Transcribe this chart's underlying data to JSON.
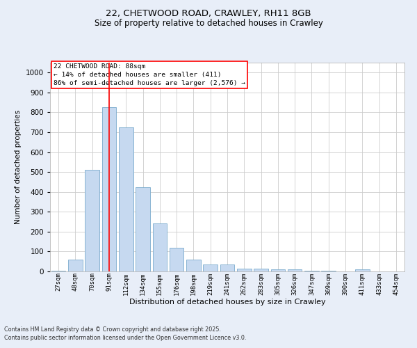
{
  "title1": "22, CHETWOOD ROAD, CRAWLEY, RH11 8GB",
  "title2": "Size of property relative to detached houses in Crawley",
  "xlabel": "Distribution of detached houses by size in Crawley",
  "ylabel": "Number of detached properties",
  "bar_labels": [
    "27sqm",
    "48sqm",
    "70sqm",
    "91sqm",
    "112sqm",
    "134sqm",
    "155sqm",
    "176sqm",
    "198sqm",
    "219sqm",
    "241sqm",
    "262sqm",
    "283sqm",
    "305sqm",
    "326sqm",
    "347sqm",
    "369sqm",
    "390sqm",
    "411sqm",
    "433sqm",
    "454sqm"
  ],
  "bar_values": [
    5,
    60,
    510,
    825,
    725,
    425,
    240,
    120,
    60,
    35,
    35,
    15,
    15,
    10,
    10,
    5,
    5,
    0,
    10,
    0,
    0
  ],
  "bar_color": "#c6d9f0",
  "bar_edgecolor": "#7aabcc",
  "vline_x": 3,
  "vline_color": "red",
  "ylim": [
    0,
    1050
  ],
  "yticks": [
    0,
    100,
    200,
    300,
    400,
    500,
    600,
    700,
    800,
    900,
    1000
  ],
  "annotation_text": "22 CHETWOOD ROAD: 88sqm\n← 14% of detached houses are smaller (411)\n86% of semi-detached houses are larger (2,576) →",
  "annotation_box_color": "red",
  "footer1": "Contains HM Land Registry data © Crown copyright and database right 2025.",
  "footer2": "Contains public sector information licensed under the Open Government Licence v3.0.",
  "bg_color": "#e8eef8",
  "plot_bg_color": "#ffffff"
}
